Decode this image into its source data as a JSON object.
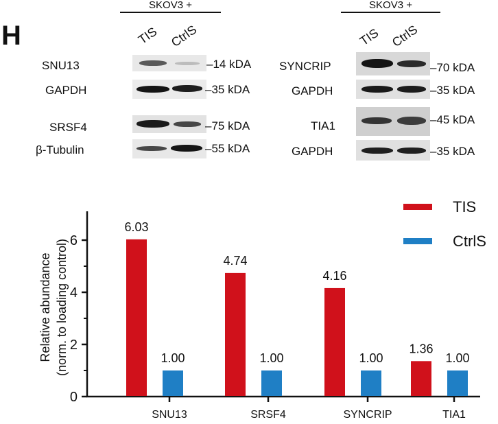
{
  "panel_label": "H",
  "blots": {
    "left": {
      "header": "SKOV3 +",
      "lanes": [
        "TIS",
        "CtrlS"
      ],
      "rows": [
        {
          "protein": "SNU13",
          "kda": "14 kDA"
        },
        {
          "protein": "GAPDH",
          "kda": "35 kDA"
        },
        {
          "protein": "SRSF4",
          "kda": "75 kDA"
        },
        {
          "protein": "β-Tubulin",
          "kda": "55 kDA"
        }
      ]
    },
    "right": {
      "header": "SKOV3 +",
      "lanes": [
        "TIS",
        "CtrlS"
      ],
      "rows": [
        {
          "protein": "SYNCRIP",
          "kda": "70 kDA"
        },
        {
          "protein": "GAPDH",
          "kda": "35 kDA"
        },
        {
          "protein": "TIA1",
          "kda": "45 kDA"
        },
        {
          "protein": "GAPDH",
          "kda": "35 kDA"
        }
      ]
    }
  },
  "colors": {
    "tis": "#d0111b",
    "ctrls": "#1f7fc5"
  },
  "chart_data": {
    "type": "bar",
    "categories": [
      "SNU13",
      "SRSF4",
      "SYNCRIP",
      "TIA1"
    ],
    "series": [
      {
        "name": "TIS",
        "values": [
          6.03,
          4.74,
          4.16,
          1.36
        ],
        "labels": [
          "6.03",
          "4.74",
          "4.16",
          "1.36"
        ]
      },
      {
        "name": "CtrlS",
        "values": [
          1.0,
          1.0,
          1.0,
          1.0
        ],
        "labels": [
          "1.00",
          "1.00",
          "1.00",
          "1.00"
        ]
      }
    ],
    "ylabel_line1": "Relative abundance",
    "ylabel_line2": "(norm. to loading control)",
    "yticks": [
      "0",
      "2",
      "4",
      "6"
    ],
    "ylim": [
      0,
      7
    ],
    "legend_position": "top-right"
  }
}
